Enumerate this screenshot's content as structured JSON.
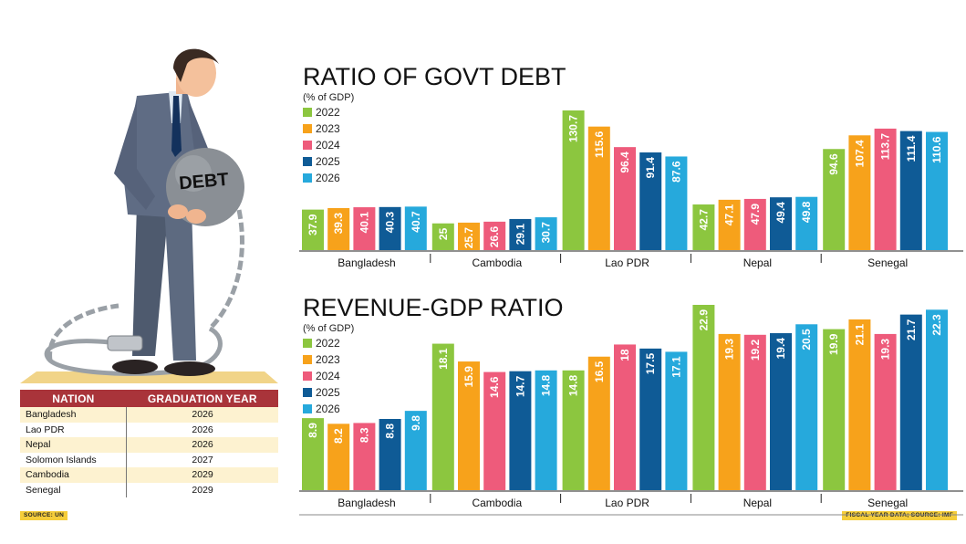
{
  "illustration": {
    "ball_label": "DEBT"
  },
  "nation_table": {
    "headers": [
      "NATION",
      "GRADUATION YEAR"
    ],
    "rows": [
      {
        "nation": "Bangladesh",
        "year": "2026"
      },
      {
        "nation": "Lao PDR",
        "year": "2026"
      },
      {
        "nation": "Nepal",
        "year": "2026"
      },
      {
        "nation": "Solomon Islands",
        "year": "2027"
      },
      {
        "nation": "Cambodia",
        "year": "2029"
      },
      {
        "nation": "Senegal",
        "year": "2029"
      }
    ]
  },
  "sources": {
    "left": "SOURCE: UN",
    "right": "FISCAL YEAR DATA; SOURCE: IMF"
  },
  "colors": {
    "2022": "#8cc63f",
    "2023": "#f7a21b",
    "2024": "#ee5b7b",
    "2025": "#0f5b96",
    "2026": "#26a9dc",
    "table_header": "#a9343a",
    "source_bg": "#f5cd3a"
  },
  "chart_data": [
    {
      "type": "bar",
      "title": "RATIO OF GOVT DEBT",
      "subtitle": "(% of GDP)",
      "categories": [
        "Bangladesh",
        "Cambodia",
        "Lao PDR",
        "Nepal",
        "Senegal"
      ],
      "series": [
        {
          "name": "2022",
          "values": [
            37.9,
            25,
            130.7,
            42.7,
            94.6
          ]
        },
        {
          "name": "2023",
          "values": [
            39.3,
            25.7,
            115.6,
            47.1,
            107.4
          ]
        },
        {
          "name": "2024",
          "values": [
            40.1,
            26.6,
            96.4,
            47.9,
            113.7
          ]
        },
        {
          "name": "2025",
          "values": [
            40.3,
            29.1,
            91.4,
            49.4,
            111.4
          ]
        },
        {
          "name": "2026",
          "values": [
            40.7,
            30.7,
            87.6,
            49.8,
            110.6
          ]
        }
      ],
      "labels": [
        [
          "37.9",
          "25",
          "130.7",
          "42.7",
          "94.6"
        ],
        [
          "39.3",
          "25.7",
          "115.6",
          "47.1",
          "107.4"
        ],
        [
          "40.1",
          "26.6",
          "96.4",
          "47.9",
          "113.7"
        ],
        [
          "40.3",
          "29.1",
          "91.4",
          "49.4",
          "111.4"
        ],
        [
          "40.7",
          "30.7",
          "87.6",
          "49.8",
          "110.6"
        ]
      ],
      "ylim": [
        0,
        130.7
      ],
      "legend": "left",
      "grid": false
    },
    {
      "type": "bar",
      "title": "REVENUE-GDP RATIO",
      "subtitle": "(% of GDP)",
      "categories": [
        "Bangladesh",
        "Cambodia",
        "Lao PDR",
        "Nepal",
        "Senegal"
      ],
      "series": [
        {
          "name": "2022",
          "values": [
            8.9,
            18.1,
            14.8,
            22.9,
            19.9
          ]
        },
        {
          "name": "2023",
          "values": [
            8.2,
            15.9,
            16.5,
            19.3,
            21.1
          ]
        },
        {
          "name": "2024",
          "values": [
            8.3,
            14.6,
            18,
            19.2,
            19.3
          ]
        },
        {
          "name": "2025",
          "values": [
            8.8,
            14.7,
            17.5,
            19.4,
            21.7
          ]
        },
        {
          "name": "2026",
          "values": [
            9.8,
            14.8,
            17.1,
            20.5,
            22.3
          ]
        }
      ],
      "labels": [
        [
          "8.9",
          "18.1",
          "14.8",
          "22.9",
          "19.9"
        ],
        [
          "8.2",
          "15.9",
          "16.5",
          "19.3",
          "21.1"
        ],
        [
          "8.3",
          "14.6",
          "18",
          "19.2",
          "19.3"
        ],
        [
          "8.8",
          "14.7",
          "17.5",
          "19.4",
          "21.7"
        ],
        [
          "9.8",
          "14.8",
          "17.1",
          "20.5",
          "22.3"
        ]
      ],
      "ylim": [
        0,
        22.9
      ],
      "legend": "left",
      "grid": false
    }
  ]
}
